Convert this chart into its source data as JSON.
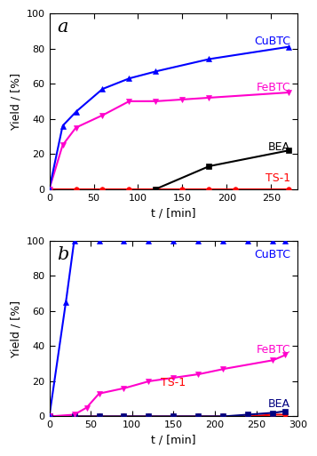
{
  "panel_a": {
    "label": "a",
    "CuBTC": {
      "t": [
        0,
        15,
        30,
        60,
        90,
        120,
        180,
        270
      ],
      "y": [
        0,
        36,
        44,
        57,
        63,
        67,
        74,
        81
      ],
      "color": "#0000ff",
      "marker": "^"
    },
    "FeBTC": {
      "t": [
        0,
        15,
        30,
        60,
        90,
        120,
        150,
        180,
        270
      ],
      "y": [
        0,
        25,
        35,
        42,
        50,
        50,
        51,
        52,
        55
      ],
      "color": "#ff00cc",
      "marker": "v"
    },
    "BEA": {
      "t": [
        120,
        180,
        270
      ],
      "y": [
        0,
        13,
        22
      ],
      "color": "#000000",
      "marker": "s"
    },
    "TS-1": {
      "t": [
        0,
        30,
        60,
        90,
        120,
        150,
        180,
        210,
        270
      ],
      "y": [
        0,
        0,
        0,
        0,
        0,
        0,
        0,
        0,
        0
      ],
      "color": "#ff0000",
      "marker": "o"
    },
    "xlabel": "t / [min]",
    "ylabel": "Yield / [%]",
    "xlim": [
      0,
      280
    ],
    "ylim": [
      0,
      100
    ],
    "xticks": [
      0,
      50,
      100,
      150,
      200,
      250
    ],
    "yticks": [
      0,
      20,
      40,
      60,
      80,
      100
    ],
    "label_CuBTC": [
      0.97,
      0.84
    ],
    "label_FeBTC": [
      0.97,
      0.58
    ],
    "label_BEA": [
      0.97,
      0.24
    ],
    "label_TS1": [
      0.97,
      0.06
    ]
  },
  "panel_b": {
    "label": "b",
    "CuBTC": {
      "t": [
        0,
        20,
        30,
        60,
        90,
        120,
        150,
        180,
        210,
        240,
        270,
        285
      ],
      "y": [
        0,
        65,
        100,
        100,
        100,
        100,
        100,
        100,
        100,
        100,
        100,
        100
      ],
      "color": "#0000ff",
      "marker": "^"
    },
    "FeBTC": {
      "t": [
        0,
        30,
        45,
        60,
        90,
        120,
        150,
        180,
        210,
        270,
        285
      ],
      "y": [
        0,
        1,
        5,
        13,
        16,
        20,
        22,
        24,
        27,
        32,
        35
      ],
      "color": "#ff00cc",
      "marker": "v"
    },
    "BEA": {
      "t": [
        0,
        30,
        60,
        90,
        120,
        150,
        180,
        210,
        240,
        270,
        285
      ],
      "y": [
        0,
        0,
        0,
        0,
        0,
        0,
        0,
        0,
        1,
        2,
        3
      ],
      "color": "#000080",
      "marker": "s"
    },
    "TS-1": {
      "t": [
        0,
        30,
        60,
        90,
        120,
        150,
        180,
        210,
        240,
        270,
        285
      ],
      "y": [
        0,
        0,
        0,
        0,
        0,
        0,
        0,
        0,
        0,
        1,
        1
      ],
      "color": "#ff0000",
      "marker": "o"
    },
    "xlabel": "t / [min]",
    "ylabel": "Yield / [%]",
    "xlim": [
      0,
      295
    ],
    "ylim": [
      0,
      100
    ],
    "xticks": [
      0,
      50,
      100,
      150,
      200,
      250,
      300
    ],
    "yticks": [
      0,
      20,
      40,
      60,
      80,
      100
    ],
    "label_CuBTC": [
      0.97,
      0.92
    ],
    "label_FeBTC": [
      0.97,
      0.38
    ],
    "label_BEA": [
      0.97,
      0.07
    ],
    "label_TS1": [
      0.55,
      0.19
    ]
  }
}
